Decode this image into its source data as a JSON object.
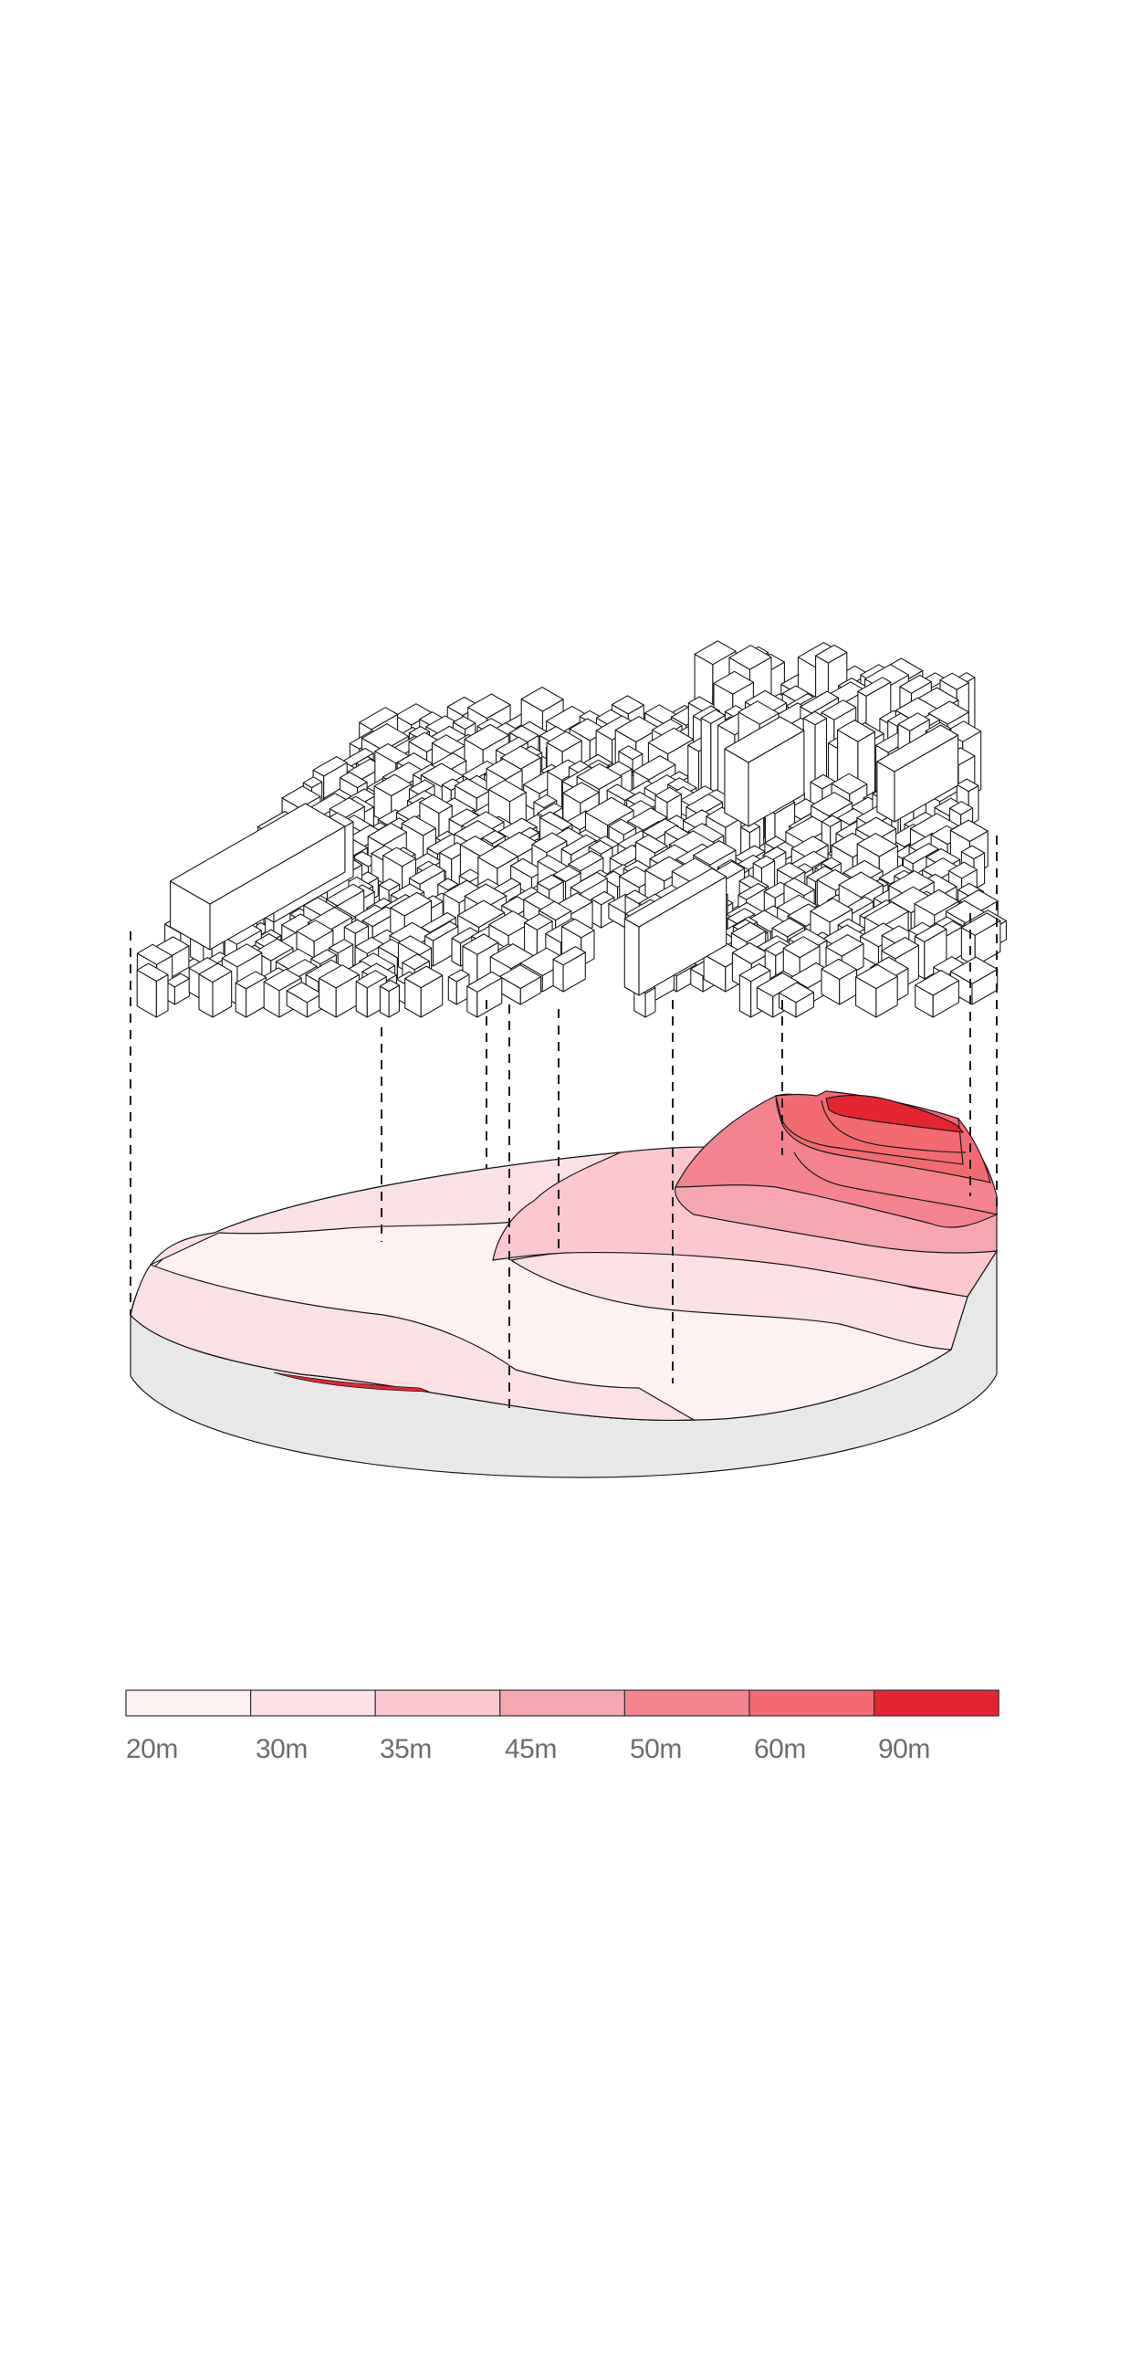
{
  "legend": {
    "entries": [
      {
        "label": "20m",
        "color": "#fdf1f2"
      },
      {
        "label": "30m",
        "color": "#fbe0e4"
      },
      {
        "label": "35m",
        "color": "#fbc8cf"
      },
      {
        "label": "45m",
        "color": "#f5a6ae"
      },
      {
        "label": "50m",
        "color": "#f4838e"
      },
      {
        "label": "60m",
        "color": "#f26b73"
      },
      {
        "label": "90m",
        "color": "#e52530"
      }
    ]
  },
  "terrain": {
    "base_side_color": "#e8e8e8",
    "outline_color": "#1a1a1a"
  },
  "city_model": {
    "building_fill": "#ffffff",
    "building_stroke": "#1a1a1a"
  }
}
